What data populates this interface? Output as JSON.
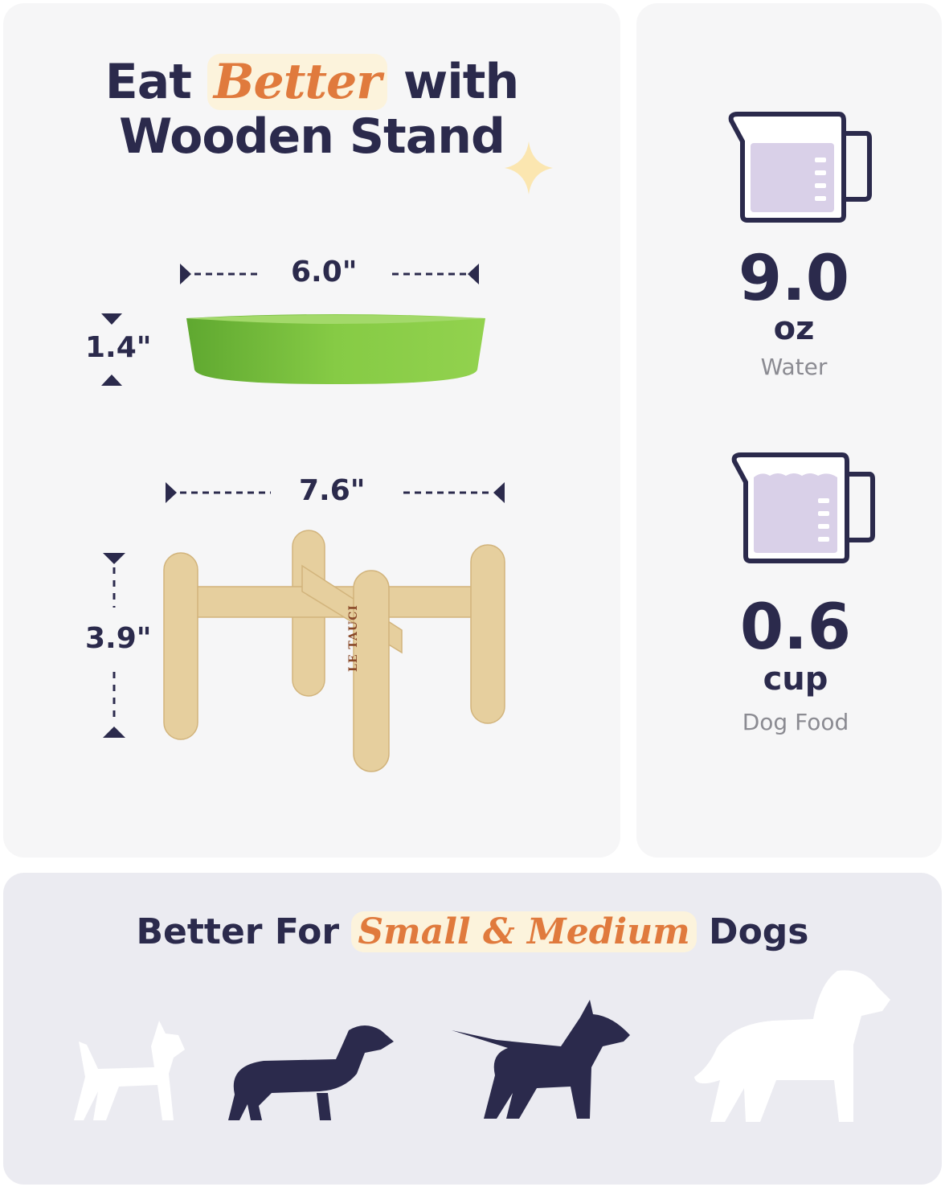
{
  "headline": {
    "part1": "Eat",
    "highlight": "Better",
    "part2": "with",
    "line2": "Wooden Stand"
  },
  "dimensions": {
    "bowl_diameter": "6.0\"",
    "bowl_height": "1.4\"",
    "stand_width": "7.6\"",
    "stand_height": "3.9\""
  },
  "brand_mark": "LE TAUCI",
  "capacity": [
    {
      "value": "9.0",
      "unit": "oz",
      "label": "Water"
    },
    {
      "value": "0.6",
      "unit": "cup",
      "label": "Dog Food"
    }
  ],
  "suitability": {
    "part1": "Better For",
    "highlight": "Small & Medium",
    "part2": "Dogs"
  },
  "dogs": [
    {
      "icon": "chihuahua-icon",
      "suitable": false
    },
    {
      "icon": "dachshund-icon",
      "suitable": true
    },
    {
      "icon": "bull-terrier-icon",
      "suitable": true
    },
    {
      "icon": "golden-retriever-icon",
      "suitable": false
    }
  ],
  "colors": {
    "navy": "#2b2a4c",
    "accent": "#e07a3d",
    "highlight": "#fcf3dc",
    "bowl": "#7cc241",
    "wood": "#e6cf9e",
    "liquid": "#d9d0e8"
  }
}
